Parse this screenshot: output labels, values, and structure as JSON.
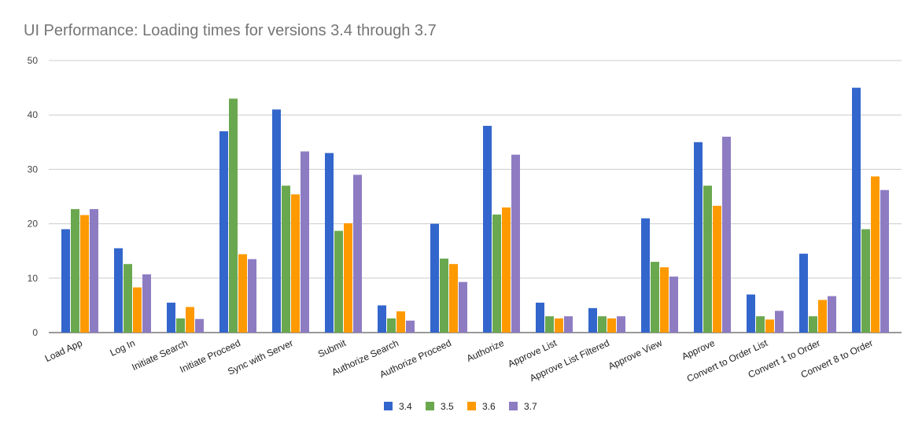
{
  "chart_data": {
    "type": "bar",
    "title": "UI Performance: Loading times for versions 3.4 through 3.7",
    "xlabel": "",
    "ylabel": "",
    "ylim": [
      0,
      50
    ],
    "yticks": [
      0,
      10,
      20,
      30,
      40,
      50
    ],
    "grid": true,
    "legend_position": "bottom",
    "categories": [
      "Load App",
      "Log In",
      "Initiate Search",
      "Initiate Proceed",
      "Sync with Server",
      "Submit",
      "Authorize Search",
      "Authorize Proceed",
      "Authorize",
      "Approve List",
      "Approve List Filtered",
      "Approve View",
      "Approve",
      "Convert to Order List",
      "Convert 1 to Order",
      "Convert 8 to Order"
    ],
    "series": [
      {
        "name": "3.4",
        "color": "#3366cc",
        "values": [
          19,
          15.5,
          5.5,
          37,
          41,
          33,
          5,
          20,
          38,
          5.5,
          4.5,
          21,
          35,
          7,
          14.5,
          45
        ]
      },
      {
        "name": "3.5",
        "color": "#6aa84f",
        "values": [
          22.7,
          12.6,
          2.6,
          43,
          27,
          18.7,
          2.6,
          13.6,
          21.7,
          3,
          3,
          13,
          27,
          3,
          3,
          19
        ]
      },
      {
        "name": "3.6",
        "color": "#ff9900",
        "values": [
          21.6,
          8.3,
          4.7,
          14.4,
          25.4,
          20.1,
          3.9,
          12.6,
          23,
          2.6,
          2.6,
          12,
          23.3,
          2.4,
          6,
          28.7
        ]
      },
      {
        "name": "3.7",
        "color": "#8e7cc3",
        "values": [
          22.7,
          10.7,
          2.5,
          13.5,
          33.3,
          29,
          2.2,
          9.3,
          32.7,
          3,
          3,
          10.3,
          36,
          4,
          6.7,
          26.2
        ]
      }
    ]
  }
}
